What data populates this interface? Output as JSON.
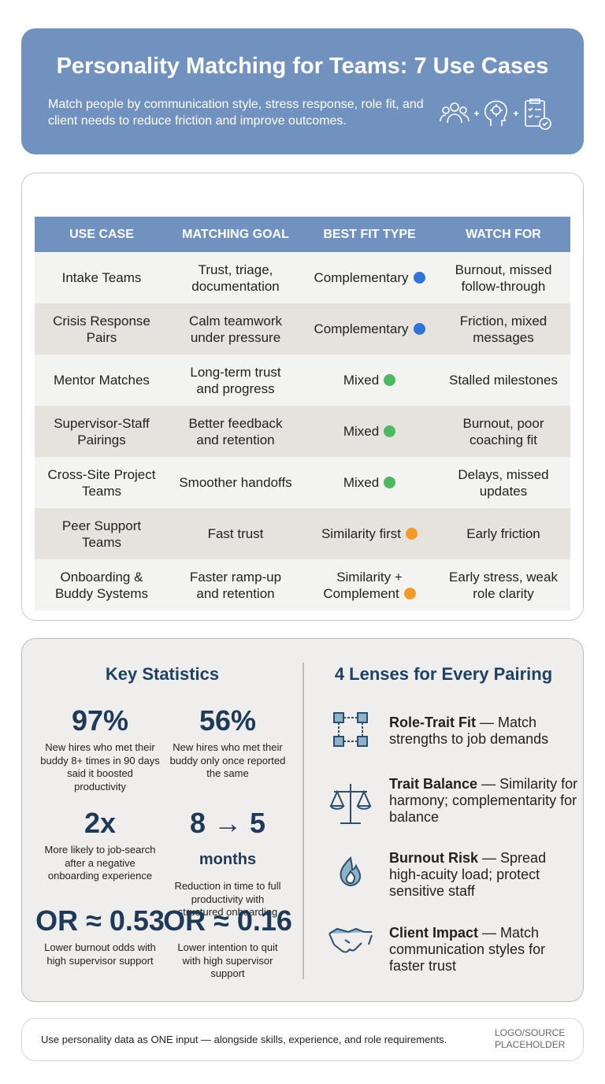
{
  "header": {
    "title": "Personality Matching for Teams: 7 Use Cases",
    "subtitle": "Match people by communication style, stress response, role fit, and client needs to reduce friction and improve outcomes."
  },
  "table": {
    "columns": [
      "USE CASE",
      "MATCHING GOAL",
      "BEST FIT TYPE",
      "WATCH FOR"
    ],
    "rows": [
      {
        "use_case": "Intake Teams",
        "goal": "Trust, triage, documentation",
        "fit": "Complementary",
        "dot": "#2f74d8",
        "watch": "Burnout, missed follow-through"
      },
      {
        "use_case": "Crisis Response Pairs",
        "goal": "Calm teamwork under pressure",
        "fit": "Complementary",
        "dot": "#2f74d8",
        "watch": "Friction, mixed messages"
      },
      {
        "use_case": "Mentor Matches",
        "goal": "Long-term trust and progress",
        "fit": "Mixed",
        "dot": "#4cb860",
        "watch": "Stalled milestones"
      },
      {
        "use_case": "Supervisor-Staff Pairings",
        "goal": "Better feedback and retention",
        "fit": "Mixed",
        "dot": "#4cb860",
        "watch": "Burnout, poor coaching fit"
      },
      {
        "use_case": "Cross-Site Project Teams",
        "goal": "Smoother handoffs",
        "fit": "Mixed",
        "dot": "#4cb860",
        "watch": "Delays, missed updates"
      },
      {
        "use_case": "Peer Support Teams",
        "goal": "Fast trust",
        "fit": "Similarity first",
        "dot": "#f39a2b",
        "watch": "Early friction"
      },
      {
        "use_case": "Onboarding & Buddy Systems",
        "goal": "Faster ramp-up and retention",
        "fit": "Similarity + Complement",
        "dot": "#f39a2b",
        "watch": "Early stress, weak role clarity"
      }
    ]
  },
  "statistics": {
    "title": "Key Statistics",
    "items": [
      {
        "value": "97%",
        "label": "New hires who met their buddy 8+ times in 90 days said it boosted productivity"
      },
      {
        "value": "56%",
        "label": "New hires who met their buddy only once reported the same"
      },
      {
        "value": "2x",
        "label": "More likely to job-search after a negative onboarding experience"
      },
      {
        "value": "8 → 5",
        "unit": "months",
        "label": "Reduction in time to full productivity with structured onboarding"
      },
      {
        "value": "OR ≈ 0.53",
        "label": "Lower burnout odds with high supervisor support"
      },
      {
        "value": "OR ≈ 0.16",
        "label": "Lower intention to quit with high supervisor support"
      }
    ]
  },
  "lenses": {
    "title": "4 Lenses for Every Pairing",
    "items": [
      {
        "term": "Role-Trait Fit",
        "text": "— Match strengths to job demands"
      },
      {
        "term": "Trait Balance",
        "text": "— Similarity for harmony; complementarity for balance"
      },
      {
        "term": "Burnout Risk",
        "text": "— Spread high-acuity load; protect sensitive staff"
      },
      {
        "term": "Client Impact",
        "text": "— Match communication styles for faster trust"
      }
    ]
  },
  "footer": {
    "note": "Use personality data as ONE input — alongside skills, experience, and role requirements.",
    "logo": "LOGO/SOURCE PLACEHOLDER"
  }
}
